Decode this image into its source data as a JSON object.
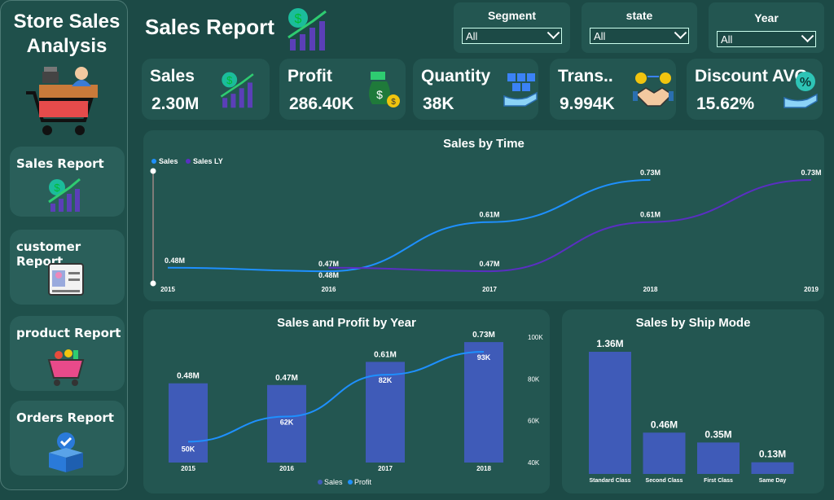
{
  "sidebar": {
    "brand": [
      "Store Sales",
      "Analysis"
    ],
    "nav": [
      {
        "label": "Sales Report",
        "icon": "growth-chart-icon"
      },
      {
        "label": "customer Report",
        "icon": "id-card-icon"
      },
      {
        "label": "product Report",
        "icon": "shopping-basket-icon"
      },
      {
        "label": "Orders Report",
        "icon": "box-check-icon"
      }
    ]
  },
  "header": {
    "title": "Sales Report"
  },
  "filters": [
    {
      "label": "Segment",
      "value": "All"
    },
    {
      "label": "state",
      "value": "All"
    },
    {
      "label": "Year",
      "value": "All"
    }
  ],
  "kpis": [
    {
      "label": "Sales",
      "value": "2.30M",
      "icon": "sales-growth-icon"
    },
    {
      "label": "Profit",
      "value": "286.40K",
      "icon": "money-bag-icon"
    },
    {
      "label": "Quantity",
      "value": "38K",
      "icon": "boxes-hand-icon"
    },
    {
      "label": "Trans..",
      "value": "9.994K",
      "icon": "handshake-icon"
    },
    {
      "label": "Discount AVG",
      "value": "15.62%",
      "icon": "discount-hand-icon"
    }
  ],
  "colors": {
    "sales": "#1e90ff",
    "sales_ly": "#5a2fc2",
    "bar": "#3f5bb8",
    "profit": "#1e90ff",
    "panel": "#235651",
    "background": "#1c4a46"
  },
  "chart_data": [
    {
      "id": "sales_by_time",
      "type": "line",
      "title": "Sales by Time",
      "x": [
        "2015",
        "2016",
        "2017",
        "2018",
        "2019"
      ],
      "series": [
        {
          "name": "Sales",
          "values": [
            0.48,
            0.47,
            0.61,
            0.73,
            null
          ],
          "labels": [
            "0.48M",
            "0.47M",
            "0.61M",
            "0.73M",
            ""
          ]
        },
        {
          "name": "Sales LY",
          "values": [
            null,
            0.48,
            0.47,
            0.61,
            0.73
          ],
          "labels": [
            "",
            "0.48M",
            "0.47M",
            "0.61M",
            "0.73M"
          ]
        }
      ],
      "legend": "top-left"
    },
    {
      "id": "sales_profit_by_year",
      "type": "bar",
      "title": "Sales and Profit by Year",
      "categories": [
        "2015",
        "2016",
        "2017",
        "2018"
      ],
      "series": [
        {
          "name": "Sales",
          "type": "bar",
          "values": [
            0.48,
            0.47,
            0.61,
            0.73
          ],
          "labels": [
            "0.48M",
            "0.47M",
            "0.61M",
            "0.73M"
          ]
        },
        {
          "name": "Profit",
          "type": "line",
          "axis": "right",
          "values": [
            50,
            62,
            82,
            93
          ],
          "labels": [
            "50K",
            "62K",
            "82K",
            "93K"
          ]
        }
      ],
      "y2_ticks": [
        "100K",
        "80K",
        "60K",
        "40K"
      ],
      "y2lim": [
        40,
        100
      ],
      "legend": "bottom"
    },
    {
      "id": "sales_by_ship_mode",
      "type": "bar",
      "title": "Sales by Ship Mode",
      "categories": [
        "Standard Class",
        "Second Class",
        "First Class",
        "Same Day"
      ],
      "values": [
        1.36,
        0.46,
        0.35,
        0.13
      ],
      "labels": [
        "1.36M",
        "0.46M",
        "0.35M",
        "0.13M"
      ]
    }
  ]
}
